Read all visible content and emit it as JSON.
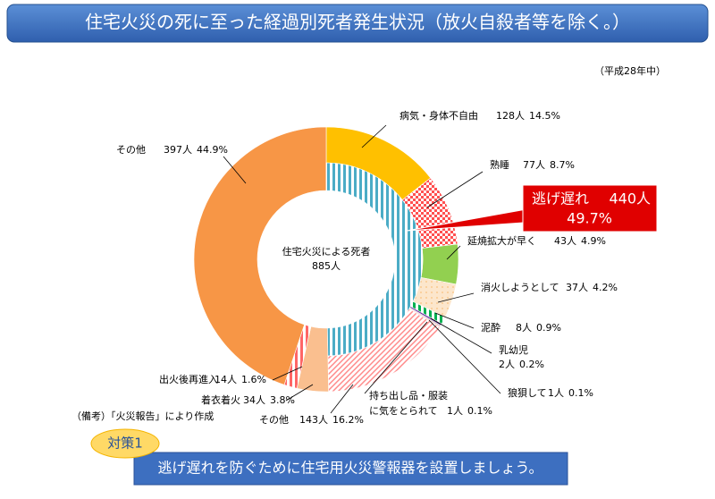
{
  "header": {
    "title": "住宅火災の死に至った経過別死者発生状況（放火自殺者等を除く。）",
    "period": "（平成28年中）"
  },
  "chart_data": {
    "type": "donut",
    "categories": [
      "病気・身体不自由",
      "熟睡",
      "延焼拡大が早く",
      "消火しようとして",
      "泥酔",
      "乳幼児",
      "狼狽して",
      [
        "持ち出し品・服装",
        "に気をとられて"
      ],
      "その他",
      "着衣着火",
      "出火後再進入",
      "その他"
    ],
    "values": [
      128,
      77,
      43,
      37,
      8,
      2,
      1,
      1,
      143,
      34,
      14,
      397
    ],
    "value_labels": [
      "128人",
      "77人",
      "43人",
      "37人",
      "8人",
      "2人",
      "1人",
      "1人",
      "143人",
      "34人",
      "14人",
      "397人"
    ],
    "percents": [
      14.5,
      8.7,
      4.9,
      4.2,
      0.9,
      0.2,
      0.1,
      0.1,
      16.2,
      3.8,
      1.6,
      44.9
    ],
    "percent_labels": [
      "14.5%",
      "8.7%",
      "4.9%",
      "4.2%",
      "0.9%",
      "0.2%",
      "0.1%",
      "0.1%",
      "16.2%",
      "3.8%",
      "1.6%",
      "44.9%"
    ],
    "colors": [
      "#ffc000",
      "#ff5050",
      "#92d050",
      "#f9c98f",
      "#00b050",
      "#7030a0",
      "#7f7f7f",
      "#ff8080",
      "#ff8a8a",
      "#fabf8f",
      "#ff6666",
      "#f79646"
    ],
    "patterns": [
      "solid",
      "check",
      "solid",
      "dots",
      "vstripes",
      "solid",
      "solid",
      "solid",
      "dstripes",
      "solid",
      "vstripes",
      "solid"
    ],
    "inner": {
      "name": "逃げ遅れ",
      "value": 440,
      "value_label": "440人",
      "percent": 49.7,
      "percent_label": "49.7%",
      "color": "#4bacc6",
      "pattern": "vstripes"
    },
    "center": {
      "label": "住宅火災による死者",
      "value": 885,
      "value_label": "885人"
    }
  },
  "footer": {
    "source": "（備考）「火災報告」により作成",
    "badge": "対策1",
    "message": "逃げ遅れを防ぐために住宅用火災警報器を設置しましょう。"
  }
}
